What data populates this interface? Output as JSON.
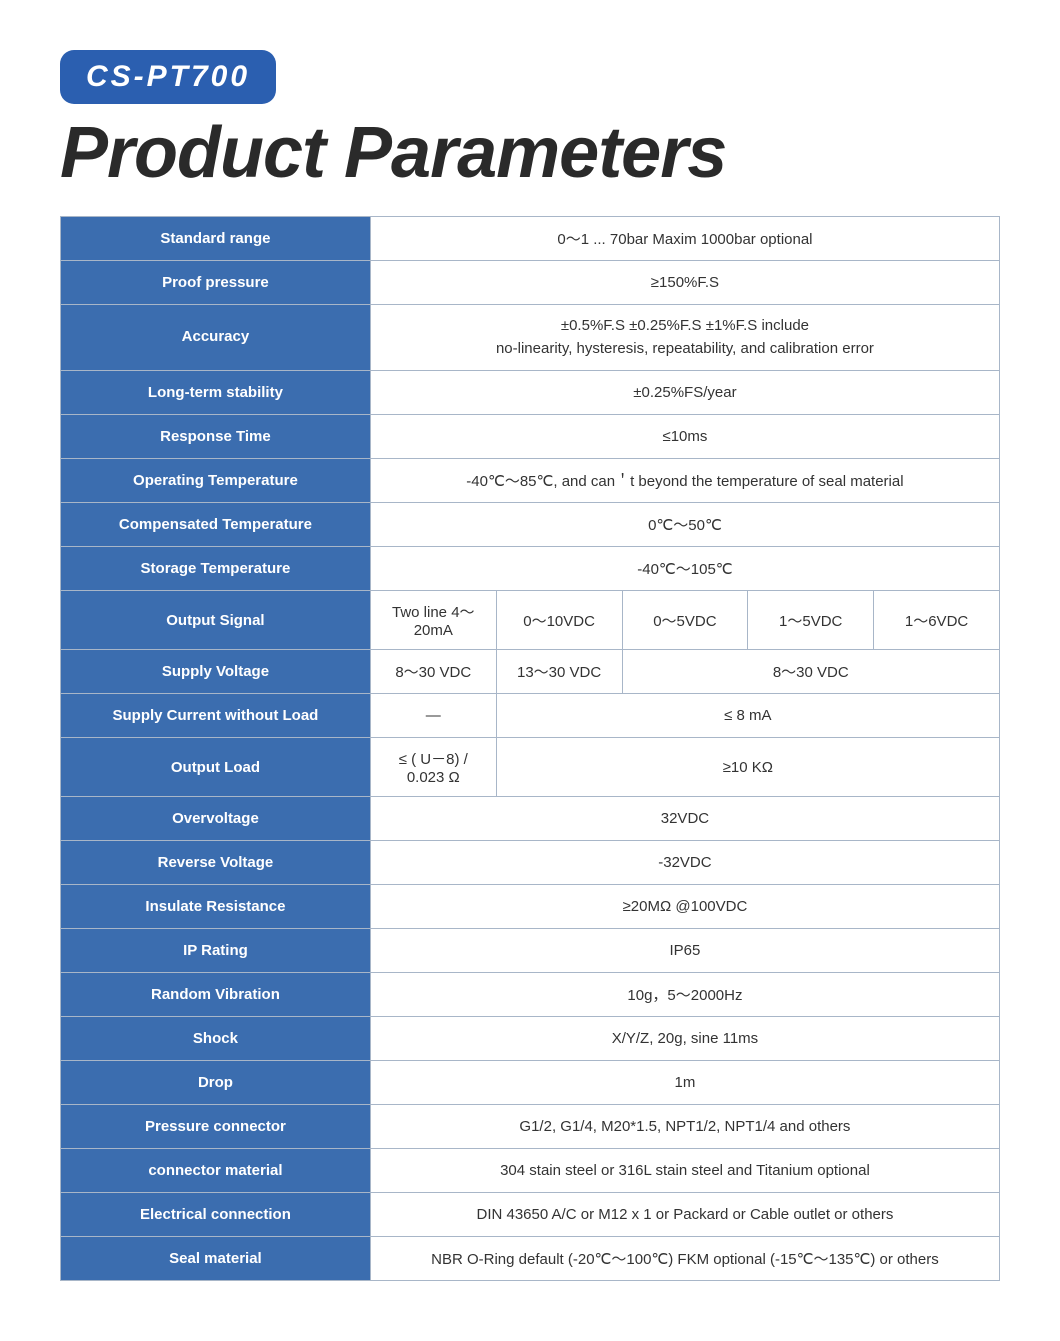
{
  "badge": "CS-PT700",
  "title": "Product Parameters",
  "colors": {
    "badge_bg": "#2b5fb0",
    "label_bg": "#3b6daf",
    "border": "#a8b6c8",
    "text_dark": "#2a2a2a"
  },
  "rows": {
    "standard_range": {
      "label": "Standard range",
      "value": "0～1 ... 70bar Maxim 1000bar optional"
    },
    "proof_pressure": {
      "label": "Proof pressure",
      "value": "≥150%F.S"
    },
    "accuracy": {
      "label": "Accuracy",
      "line1": "±0.5%F.S  ±0.25%F.S  ±1%F.S  include",
      "line2": "no-linearity, hysteresis, repeatability, and calibration error"
    },
    "long_term_stability": {
      "label": "Long-term stability",
      "value": "±0.25%FS/year"
    },
    "response_time": {
      "label": "Response Time",
      "value": "≤10ms"
    },
    "operating_temperature": {
      "label": "Operating Temperature",
      "value": "-40℃～85℃, and can＇t beyond the temperature of seal material"
    },
    "compensated_temperature": {
      "label": "Compensated Temperature",
      "value": "0℃～50℃"
    },
    "storage_temperature": {
      "label": "Storage Temperature",
      "value": "-40℃～105℃"
    },
    "output_signal": {
      "label": "Output Signal",
      "v1": "Two line  4～20mA",
      "v2": "0～10VDC",
      "v3": "0～5VDC",
      "v4": "1～5VDC",
      "v5": "1～6VDC"
    },
    "supply_voltage": {
      "label": "Supply Voltage",
      "v1": "8～30 VDC",
      "v2": "13～30 VDC",
      "v3": "8～30 VDC"
    },
    "supply_current": {
      "label": "Supply Current without Load",
      "v1": "—",
      "v2": "≤ 8 mA"
    },
    "output_load": {
      "label": "Output Load",
      "v1": "≤ ( U－8) / 0.023 Ω",
      "v2": "≥10 KΩ"
    },
    "overvoltage": {
      "label": "Overvoltage",
      "value": "32VDC"
    },
    "reverse_voltage": {
      "label": "Reverse Voltage",
      "value": "-32VDC"
    },
    "insulate_resistance": {
      "label": "Insulate Resistance",
      "value": "≥20MΩ @100VDC"
    },
    "ip_rating": {
      "label": "IP Rating",
      "value": "IP65"
    },
    "random_vibration": {
      "label": "Random Vibration",
      "value": "10g，5～2000Hz"
    },
    "shock": {
      "label": "Shock",
      "value": "X/Y/Z, 20g, sine 11ms"
    },
    "drop": {
      "label": "Drop",
      "value": "1m"
    },
    "pressure_connector": {
      "label": "Pressure connector",
      "value": "G1/2, G1/4, M20*1.5, NPT1/2, NPT1/4 and others"
    },
    "connector_material": {
      "label": "connector material",
      "value": "304 stain steel or 316L stain steel and Titanium optional"
    },
    "electrical_connection": {
      "label": "Electrical connection",
      "value": "DIN 43650 A/C or M12 x 1 or Packard or Cable outlet or others"
    },
    "seal_material": {
      "label": "Seal material",
      "value": "NBR O-Ring default (-20℃～100℃)     FKM optional (-15℃～135℃) or others"
    }
  }
}
